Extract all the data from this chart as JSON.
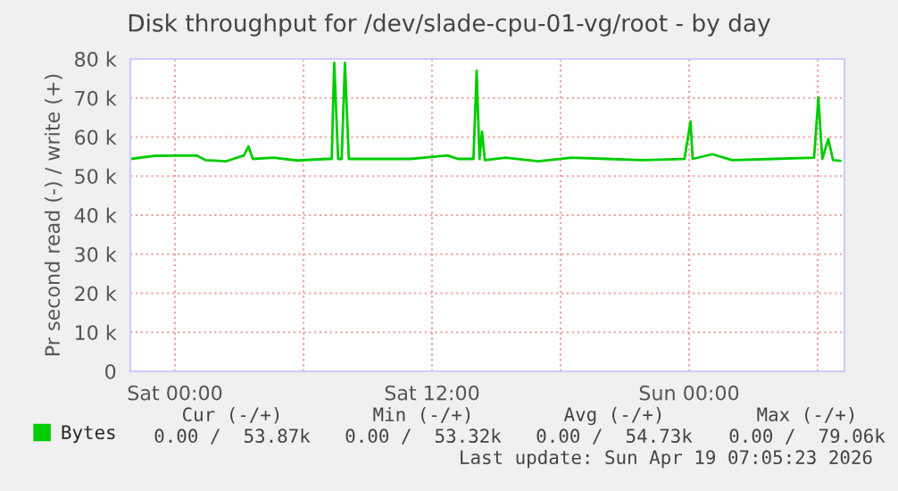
{
  "chart_data": {
    "type": "line",
    "title": "Disk throughput for /dev/slade-cpu-01-vg/root - by day",
    "ylabel": "Pr second read (-) / write (+)",
    "x": [
      "2026-04-17T21:56",
      "2026-04-17T23:04",
      "2026-04-18T01:00",
      "2026-04-18T01:25",
      "2026-04-18T02:23",
      "2026-04-18T03:13",
      "2026-04-18T03:26",
      "2026-04-18T03:38",
      "2026-04-18T04:36",
      "2026-04-18T05:43",
      "2026-04-18T07:07",
      "2026-04-18T07:19",
      "2026-04-18T07:26",
      "2026-04-18T07:37",
      "2026-04-18T07:47",
      "2026-04-18T07:56",
      "2026-04-18T08:07",
      "2026-04-18T09:37",
      "2026-04-18T11:00",
      "2026-04-18T12:43",
      "2026-04-18T13:13",
      "2026-04-18T13:56",
      "2026-04-18T14:05",
      "2026-04-18T14:13",
      "2026-04-18T14:20",
      "2026-04-18T14:28",
      "2026-04-18T15:26",
      "2026-04-18T16:58",
      "2026-04-18T18:30",
      "2026-04-18T20:10",
      "2026-04-18T21:50",
      "2026-04-18T23:47",
      "2026-04-19T00:04",
      "2026-04-19T00:10",
      "2026-04-19T01:05",
      "2026-04-19T02:00",
      "2026-04-19T03:56",
      "2026-04-19T05:50",
      "2026-04-19T06:02",
      "2026-04-19T06:13",
      "2026-04-19T06:30",
      "2026-04-19T06:43",
      "2026-04-19T07:04"
    ],
    "series": [
      {
        "name": "Bytes",
        "color": "#00cc00",
        "values": [
          54.4,
          55.2,
          55.3,
          54.1,
          53.8,
          55.3,
          57.6,
          54.4,
          54.7,
          54.0,
          54.4,
          54.4,
          79,
          54.4,
          54.4,
          79.0,
          54.4,
          54.4,
          54.4,
          55.3,
          54.4,
          54.4,
          77.0,
          54.4,
          61.4,
          54.1,
          54.7,
          53.8,
          54.7,
          54.4,
          54.1,
          54.4,
          64.0,
          54.4,
          55.6,
          54.1,
          54.4,
          54.7,
          70.1,
          54.4,
          59.5,
          54.1,
          53.9
        ]
      }
    ],
    "xlim": [
      "2026-04-17T21:55",
      "2026-04-19T07:15"
    ],
    "xticks": [
      {
        "value": "2026-04-18T00:00",
        "label": "Sat 00:00"
      },
      {
        "value": "2026-04-18T06:00",
        "label": null
      },
      {
        "value": "2026-04-18T12:00",
        "label": "Sat 12:00"
      },
      {
        "value": "2026-04-18T18:00",
        "label": null
      },
      {
        "value": "2026-04-19T00:00",
        "label": "Sun 00:00"
      },
      {
        "value": "2026-04-19T06:00",
        "label": null
      }
    ],
    "ylim": [
      0,
      80
    ],
    "yticks": [
      {
        "value": 0,
        "label": "0"
      },
      {
        "value": 10,
        "label": "10 k"
      },
      {
        "value": 20,
        "label": "20 k"
      },
      {
        "value": 30,
        "label": "30 k"
      },
      {
        "value": 40,
        "label": "40 k"
      },
      {
        "value": 50,
        "label": "50 k"
      },
      {
        "value": 60,
        "label": "60 k"
      },
      {
        "value": 70,
        "label": "70 k"
      },
      {
        "value": 80,
        "label": "80 k"
      }
    ],
    "grid": true,
    "legend": "bottom left",
    "marker": "none",
    "line_style": "solid",
    "annotations": [
      "Cur (-/+)",
      "Min (-/+)",
      "Avg (-/+)",
      "Max (-/+)",
      "0.00 /  53.87k",
      "0.00 /  53.32k",
      "0.00 /  54.73k",
      "0.00 /  79.06k",
      "Last update: Sun Apr 19 07:05:23 2026"
    ]
  }
}
